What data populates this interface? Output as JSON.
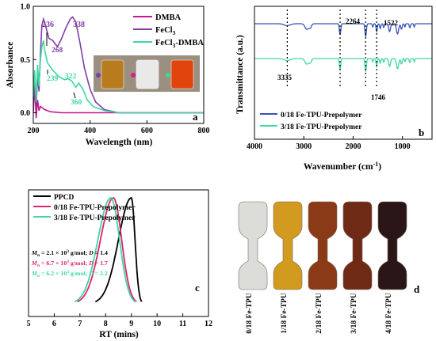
{
  "panels": [
    {
      "id": "a",
      "letter": "a",
      "type": "line",
      "xlabel": "Wavelength (nm)",
      "ylabel": "Absorbance",
      "xlim": [
        200,
        800
      ],
      "ylim": [
        -0.1,
        1.0
      ],
      "xticks": [
        "200",
        "400",
        "600",
        "800"
      ],
      "yticks": [
        "0.0",
        "0.5",
        "1.0"
      ],
      "legend_position": "top-right",
      "series": [
        {
          "name": "DMBA",
          "color": "#c4188f",
          "x": [
            200,
            205,
            210,
            215,
            220,
            225,
            230,
            240,
            260,
            300,
            400,
            500,
            600,
            700,
            800
          ],
          "y": [
            0.0,
            0.25,
            -0.05,
            0.12,
            0.02,
            0.06,
            0.05,
            0.03,
            0.01,
            0.0,
            0.0,
            0.0,
            0.0,
            0.0,
            0.0
          ]
        },
        {
          "name": "FeCl",
          "name_sub": "3",
          "color": "#7e3ea6",
          "x": [
            200,
            205,
            210,
            215,
            220,
            225,
            230,
            236,
            245,
            255,
            268,
            285,
            300,
            315,
            330,
            338,
            350,
            365,
            380,
            400,
            420,
            450,
            500,
            600,
            700,
            800
          ],
          "y": [
            0.1,
            0.3,
            0.05,
            0.35,
            0.2,
            0.55,
            0.82,
            0.88,
            0.8,
            0.7,
            0.68,
            0.62,
            0.7,
            0.8,
            0.88,
            0.9,
            0.85,
            0.65,
            0.42,
            0.22,
            0.1,
            0.03,
            0.0,
            0.0,
            0.0,
            0.0
          ]
        },
        {
          "name": "FeCl",
          "name_sub": "3",
          "name_suffix": "-DMBA",
          "color": "#3ed6a2",
          "x": [
            200,
            205,
            210,
            215,
            220,
            225,
            230,
            236,
            239,
            250,
            268,
            290,
            310,
            322,
            335,
            350,
            360,
            375,
            390,
            410,
            450,
            500,
            600,
            700,
            800
          ],
          "y": [
            0.15,
            0.4,
            0.1,
            0.45,
            0.25,
            0.5,
            0.62,
            0.68,
            0.6,
            0.47,
            0.4,
            0.34,
            0.31,
            0.32,
            0.3,
            0.24,
            0.28,
            0.22,
            0.12,
            0.06,
            0.02,
            0.0,
            0.0,
            0.0,
            0.0
          ]
        }
      ],
      "annotations": [
        {
          "text": "236",
          "color": "#7e3ea6"
        },
        {
          "text": "338",
          "color": "#7e3ea6"
        },
        {
          "text": "268",
          "color": "#7e3ea6"
        },
        {
          "text": "322",
          "color": "#3ed6a2"
        },
        {
          "text": "239",
          "color": "#3ed6a2"
        },
        {
          "text": "360",
          "color": "#3ed6a2"
        }
      ],
      "vials": [
        {
          "liquid": "#b87c1e",
          "dot": "#7e3ea6"
        },
        {
          "liquid": "#e9e9ea",
          "dot": "#d81b86"
        },
        {
          "liquid": "#e0450e",
          "dot": "#3ed6a2"
        }
      ]
    },
    {
      "id": "b",
      "letter": "b",
      "type": "line",
      "xlabel": "Wavenumber (cm",
      "xlabel_sup": "-1",
      "xlabel_end": ")",
      "ylabel": "Transmittance (a.u.)",
      "xlim": [
        4000,
        400
      ],
      "xticks": [
        "4000",
        "3000",
        "2000",
        "1000"
      ],
      "legend_position": "bottom-left",
      "series": [
        {
          "name": "0/18 Fe-TPU-Prepolymer",
          "color": "#3653b5"
        },
        {
          "name": "3/18 Fe-TPU-Prepolymer",
          "color": "#3ed6a2"
        }
      ],
      "peaks": [
        {
          "label": "3335",
          "x": 3335
        },
        {
          "label": "2264",
          "x": 2264
        },
        {
          "label": "1746",
          "x": 1746
        },
        {
          "label": "1522",
          "x": 1522
        }
      ]
    },
    {
      "id": "c",
      "letter": "c",
      "type": "line",
      "xlabel": "RT (mins)",
      "xlim": [
        5,
        12
      ],
      "xticks": [
        "5",
        "6",
        "7",
        "8",
        "9",
        "10",
        "11",
        "12"
      ],
      "legend_position": "top-left",
      "series": [
        {
          "name": "PPCD",
          "color": "#000000",
          "peak": 9.0,
          "start": 7.6,
          "end": 9.4
        },
        {
          "name": "0/18 Fe-TPU-Prepolymer",
          "color": "#e0226f",
          "peak": 8.3,
          "start": 6.9,
          "end": 9.2
        },
        {
          "name": "3/18 Fe-TPU-Prepolymer",
          "color": "#3ed6a2",
          "peak": 8.2,
          "start": 6.8,
          "end": 9.15
        }
      ],
      "mw_annotations": [
        {
          "mn_value": "2.1",
          "exp": "3",
          "d_value": "1.4",
          "color": "#000000"
        },
        {
          "mn_value": "6.7",
          "exp": "3",
          "d_value": "1.7",
          "color": "#e0226f"
        },
        {
          "mn_value": "6.2",
          "exp": "3",
          "d_value": "2.2",
          "color": "#3ed6a2"
        }
      ],
      "mw_text": {
        "mn": "M",
        "mn_sub": "n",
        "eq": " = ",
        "times": " × 10",
        "unit": " g/mol; ",
        "d": "D",
        "d_eq": " = "
      }
    },
    {
      "id": "d",
      "letter": "d",
      "type": "photo",
      "samples": [
        {
          "label": "0/18 Fe-TPU",
          "color": "#dcdcd8"
        },
        {
          "label": "1/18 Fe-TPU",
          "color": "#d29a1e"
        },
        {
          "label": "2/18 Fe-TPU",
          "color": "#8a3a16"
        },
        {
          "label": "3/18 Fe-TPU",
          "color": "#6e2a14"
        },
        {
          "label": "4/18 Fe-TPU",
          "color": "#2a1616"
        }
      ]
    }
  ]
}
